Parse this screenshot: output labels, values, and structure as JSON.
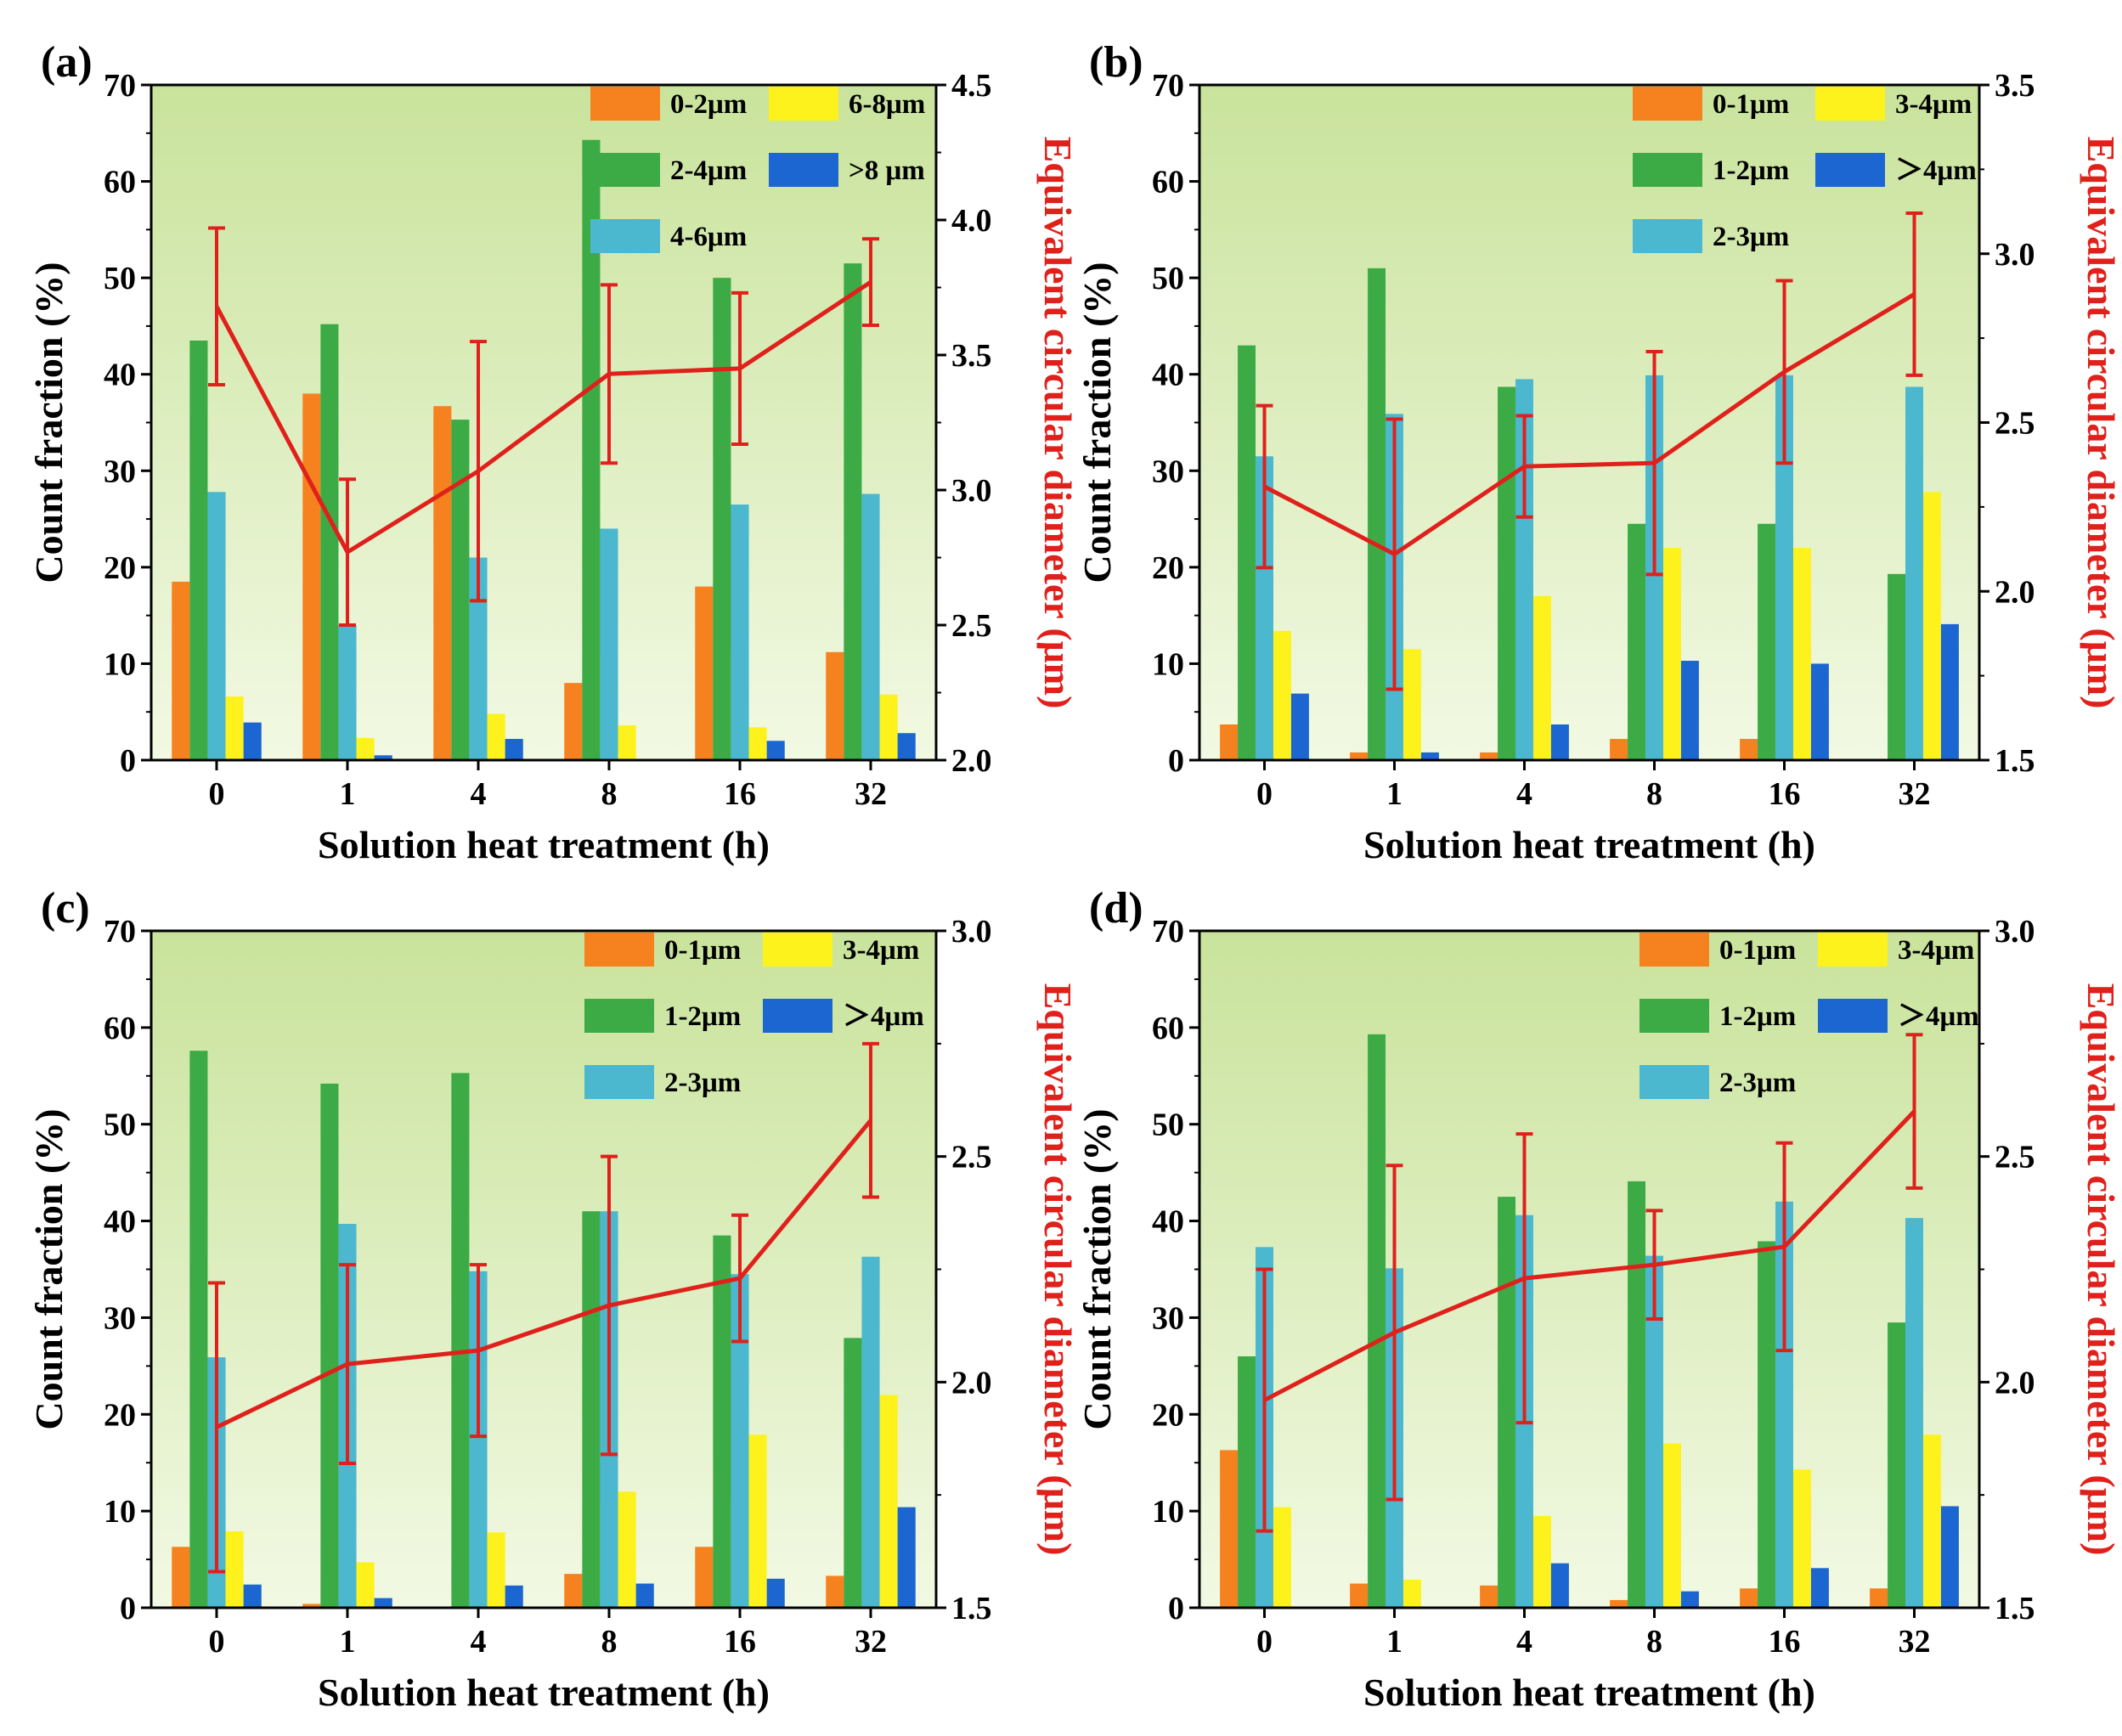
{
  "colors": {
    "bins": [
      "#f5821f",
      "#3cab46",
      "#4bb8d0",
      "#fdf21c",
      "#1b66d1"
    ],
    "line": "#e0201b",
    "right_axis_title": "#e0201b",
    "bg_top": "#c9e39c",
    "bg_bottom": "#f2f9e3"
  },
  "chart_data": [
    {
      "type": "bar",
      "panel_label": "(a)",
      "categories": [
        "0",
        "1",
        "4",
        "8",
        "16",
        "32"
      ],
      "xlabel": "Solution heat treatment (h)",
      "ylabel": "Count fraction (%)",
      "y2label": "Equivalent circular diameter (μm)",
      "ylim": [
        0,
        70
      ],
      "yticks": [
        "0",
        "10",
        "20",
        "30",
        "40",
        "50",
        "60",
        "70"
      ],
      "y2lim": [
        2.0,
        4.5
      ],
      "y2ticks": [
        "2.0",
        "2.5",
        "3.0",
        "3.5",
        "4.0",
        "4.5"
      ],
      "legend_order": [
        0,
        3,
        1,
        4,
        2
      ],
      "series": [
        {
          "name": "0-2μm",
          "values": [
            18.5,
            38,
            36.7,
            8,
            18,
            11.2
          ]
        },
        {
          "name": "2-4μm",
          "values": [
            43.5,
            45.2,
            35.3,
            64.3,
            50,
            51.5
          ]
        },
        {
          "name": "4-6μm",
          "values": [
            27.8,
            14,
            21,
            24,
            26.5,
            27.6
          ]
        },
        {
          "name": "6-8μm",
          "values": [
            6.6,
            2.3,
            4.8,
            3.6,
            3.4,
            6.8
          ]
        },
        {
          "name": ">8 μm",
          "values": [
            3.9,
            0.5,
            2.2,
            0,
            2,
            2.8
          ]
        }
      ],
      "line": {
        "name": "Equivalent circular diameter",
        "values": [
          3.68,
          2.77,
          3.07,
          3.43,
          3.45,
          3.77
        ],
        "errors": [
          0.29,
          0.27,
          0.48,
          0.33,
          0.28,
          0.16
        ]
      }
    },
    {
      "type": "bar",
      "panel_label": "(b)",
      "categories": [
        "0",
        "1",
        "4",
        "8",
        "16",
        "32"
      ],
      "xlabel": "Solution heat treatment (h)",
      "ylabel": "Count fraction (%)",
      "y2label": "Equivalent circular diameter (μm)",
      "ylim": [
        0,
        70
      ],
      "yticks": [
        "0",
        "10",
        "20",
        "30",
        "40",
        "50",
        "60",
        "70"
      ],
      "y2lim": [
        1.5,
        3.5
      ],
      "y2ticks": [
        "1.5",
        "2.0",
        "2.5",
        "3.0",
        "3.5"
      ],
      "legend_order": [
        0,
        3,
        1,
        4,
        2
      ],
      "series": [
        {
          "name": "0-1μm",
          "values": [
            3.7,
            0.8,
            0.8,
            2.2,
            2.2,
            0
          ]
        },
        {
          "name": "1-2μm",
          "values": [
            43,
            51,
            38.7,
            24.5,
            24.5,
            19.3
          ]
        },
        {
          "name": "2-3μm",
          "values": [
            31.5,
            35.9,
            39.5,
            39.9,
            39.9,
            38.7
          ]
        },
        {
          "name": "3-4μm",
          "values": [
            13.4,
            11.5,
            17,
            22,
            22,
            27.8
          ]
        },
        {
          "name": "＞4μm",
          "values": [
            6.9,
            0.8,
            3.7,
            10.3,
            10,
            14.1
          ]
        }
      ],
      "line": {
        "name": "Equivalent circular diameter",
        "values": [
          2.31,
          2.11,
          2.37,
          2.38,
          2.65,
          2.88
        ],
        "errors": [
          0.24,
          0.4,
          0.15,
          0.33,
          0.27,
          0.24
        ]
      }
    },
    {
      "type": "bar",
      "panel_label": "(c)",
      "categories": [
        "0",
        "1",
        "4",
        "8",
        "16",
        "32"
      ],
      "xlabel": "Solution heat treatment (h)",
      "ylabel": "Count fraction (%)",
      "y2label": "Equivalent circular diameter (μm)",
      "ylim": [
        0,
        70
      ],
      "yticks": [
        "0",
        "10",
        "20",
        "30",
        "40",
        "50",
        "60",
        "70"
      ],
      "y2lim": [
        1.5,
        3.0
      ],
      "y2ticks": [
        "1.5",
        "2.0",
        "2.5",
        "3.0"
      ],
      "legend_order": [
        0,
        3,
        1,
        4,
        2
      ],
      "series": [
        {
          "name": "0-1μm",
          "values": [
            6.3,
            0.4,
            0,
            3.5,
            6.3,
            3.3
          ]
        },
        {
          "name": "1-2μm",
          "values": [
            57.6,
            54.2,
            55.3,
            41,
            38.5,
            27.9
          ]
        },
        {
          "name": "2-3μm",
          "values": [
            25.9,
            39.7,
            34.8,
            41,
            34.5,
            36.3
          ]
        },
        {
          "name": "3-4μm",
          "values": [
            7.9,
            4.7,
            7.8,
            12,
            17.9,
            22
          ]
        },
        {
          "name": "＞4μm",
          "values": [
            2.4,
            1,
            2.3,
            2.5,
            3,
            10.4
          ]
        }
      ],
      "line": {
        "name": "Equivalent circular diameter",
        "values": [
          1.9,
          2.04,
          2.07,
          2.17,
          2.23,
          2.58
        ],
        "errors": [
          0.32,
          0.22,
          0.19,
          0.33,
          0.14,
          0.17
        ]
      }
    },
    {
      "type": "bar",
      "panel_label": "(d)",
      "categories": [
        "0",
        "1",
        "4",
        "8",
        "16",
        "32"
      ],
      "xlabel": "Solution heat treatment (h)",
      "ylabel": "Count fraction (%)",
      "y2label": "Equivalent circular diameter (μm)",
      "ylim": [
        0,
        70
      ],
      "yticks": [
        "0",
        "10",
        "20",
        "30",
        "40",
        "50",
        "60",
        "70"
      ],
      "y2lim": [
        1.5,
        3.0
      ],
      "y2ticks": [
        "1.5",
        "2.0",
        "2.5",
        "3.0"
      ],
      "legend_order": [
        0,
        3,
        1,
        4,
        2
      ],
      "series": [
        {
          "name": "0-1μm",
          "values": [
            16.3,
            2.5,
            2.3,
            0.8,
            2,
            2
          ]
        },
        {
          "name": "1-2μm",
          "values": [
            26,
            59.3,
            42.5,
            44.1,
            37.9,
            29.5
          ]
        },
        {
          "name": "2-3μm",
          "values": [
            37.3,
            35.1,
            40.6,
            36.4,
            42,
            40.3
          ]
        },
        {
          "name": "3-4μm",
          "values": [
            10.4,
            2.9,
            9.5,
            17,
            14.3,
            17.9
          ]
        },
        {
          "name": "＞4μm",
          "values": [
            0,
            0,
            4.6,
            1.7,
            4.1,
            10.5
          ]
        }
      ],
      "line": {
        "name": "Equivalent circular diameter",
        "values": [
          1.96,
          2.11,
          2.23,
          2.26,
          2.3,
          2.6
        ],
        "errors": [
          0.29,
          0.37,
          0.32,
          0.12,
          0.23,
          0.17
        ]
      }
    }
  ]
}
